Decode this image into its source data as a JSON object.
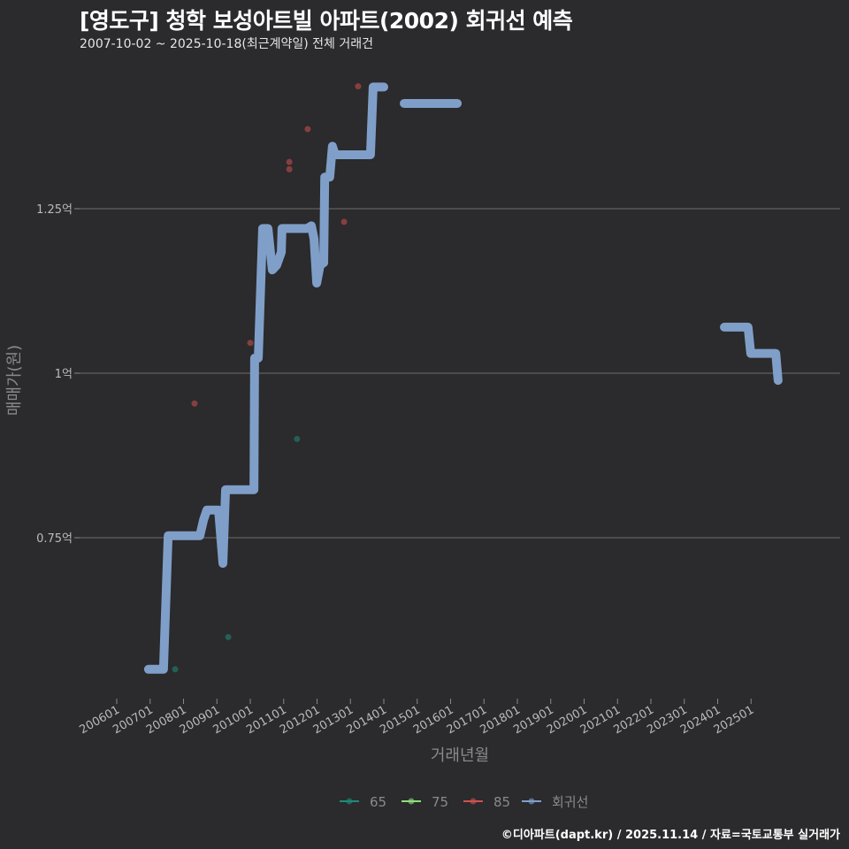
{
  "title": "[영도구] 청학 보성아트빌 아파트(2002) 회귀선 예측",
  "subtitle": "2007-10-02 ~ 2025-10-18(최근계약일) 전체 거래건",
  "credit": "©디아파트(dapt.kr) / 2025.11.14 / 자료=국토교통부 실거래가",
  "chart_data": {
    "type": "line",
    "title": "[영도구] 청학 보성아트빌 아파트(2002) 회귀선 예측",
    "xlabel": "거래년월",
    "ylabel": "매매가(원)",
    "xlim": [
      2005.1,
      2027.0
    ],
    "ylim": [
      0.48,
      1.5
    ],
    "grid": true,
    "x_ticks": [
      2006,
      2007,
      2008,
      2009,
      2010,
      2011,
      2012,
      2013,
      2014,
      2015,
      2016,
      2017,
      2018,
      2019,
      2020,
      2021,
      2022,
      2023,
      2024,
      2025
    ],
    "x_tick_labels": [
      "200601",
      "200701",
      "200801",
      "200901",
      "201001",
      "201101",
      "201201",
      "201301",
      "201401",
      "201501",
      "201601",
      "201701",
      "201801",
      "201901",
      "202001",
      "202101",
      "202201",
      "202301",
      "202401",
      "202501"
    ],
    "y_ticks": [
      0.75,
      1.0,
      1.25
    ],
    "y_tick_labels": [
      "0.75억",
      "1억",
      "1.25억"
    ],
    "legend_position": "bottom",
    "legend": [
      {
        "name": "65",
        "color": "#1f8a7a"
      },
      {
        "name": "75",
        "color": "#8fe07a"
      },
      {
        "name": "85",
        "color": "#d05050"
      },
      {
        "name": "회귀선",
        "color": "#7f9fc9"
      }
    ],
    "regression_segments": [
      [
        [
          2006.95,
          0.55
        ],
        [
          2007.4,
          0.55
        ],
        [
          2007.54,
          0.753
        ],
        [
          2008.49,
          0.753
        ],
        [
          2008.6,
          0.777
        ],
        [
          2008.7,
          0.792
        ],
        [
          2009.05,
          0.792
        ],
        [
          2009.18,
          0.711
        ],
        [
          2009.26,
          0.823
        ],
        [
          2010.11,
          0.823
        ],
        [
          2010.13,
          1.023
        ],
        [
          2010.24,
          1.023
        ],
        [
          2010.37,
          1.22
        ],
        [
          2010.53,
          1.22
        ],
        [
          2010.66,
          1.157
        ],
        [
          2010.79,
          1.164
        ],
        [
          2010.93,
          1.184
        ],
        [
          2010.95,
          1.22
        ],
        [
          2011.7,
          1.22
        ],
        [
          2011.83,
          1.224
        ],
        [
          2011.91,
          1.204
        ],
        [
          2011.99,
          1.137
        ],
        [
          2012.09,
          1.164
        ],
        [
          2012.2,
          1.168
        ],
        [
          2012.23,
          1.298
        ],
        [
          2012.38,
          1.298
        ],
        [
          2012.46,
          1.345
        ],
        [
          2012.54,
          1.332
        ],
        [
          2013.6,
          1.332
        ],
        [
          2013.68,
          1.435
        ],
        [
          2014.0,
          1.435
        ]
      ],
      [
        [
          2014.61,
          1.41
        ],
        [
          2016.2,
          1.41
        ]
      ],
      [
        [
          2024.2,
          1.07
        ],
        [
          2024.91,
          1.07
        ],
        [
          2024.99,
          1.03
        ],
        [
          2025.74,
          1.03
        ],
        [
          2025.81,
          0.989
        ]
      ]
    ],
    "points": [
      {
        "series": "85",
        "x": 2008.33,
        "y": 0.954
      },
      {
        "series": "85",
        "x": 2010.0,
        "y": 1.046
      },
      {
        "series": "85",
        "x": 2011.17,
        "y": 1.321
      },
      {
        "series": "85",
        "x": 2011.17,
        "y": 1.31
      },
      {
        "series": "85",
        "x": 2011.72,
        "y": 1.371
      },
      {
        "series": "85",
        "x": 2012.81,
        "y": 1.23
      },
      {
        "series": "85",
        "x": 2013.23,
        "y": 1.436
      },
      {
        "series": "65",
        "x": 2011.4,
        "y": 0.9
      },
      {
        "series": "65",
        "x": 2009.34,
        "y": 0.599
      },
      {
        "series": "65",
        "x": 2007.75,
        "y": 0.55
      }
    ]
  }
}
